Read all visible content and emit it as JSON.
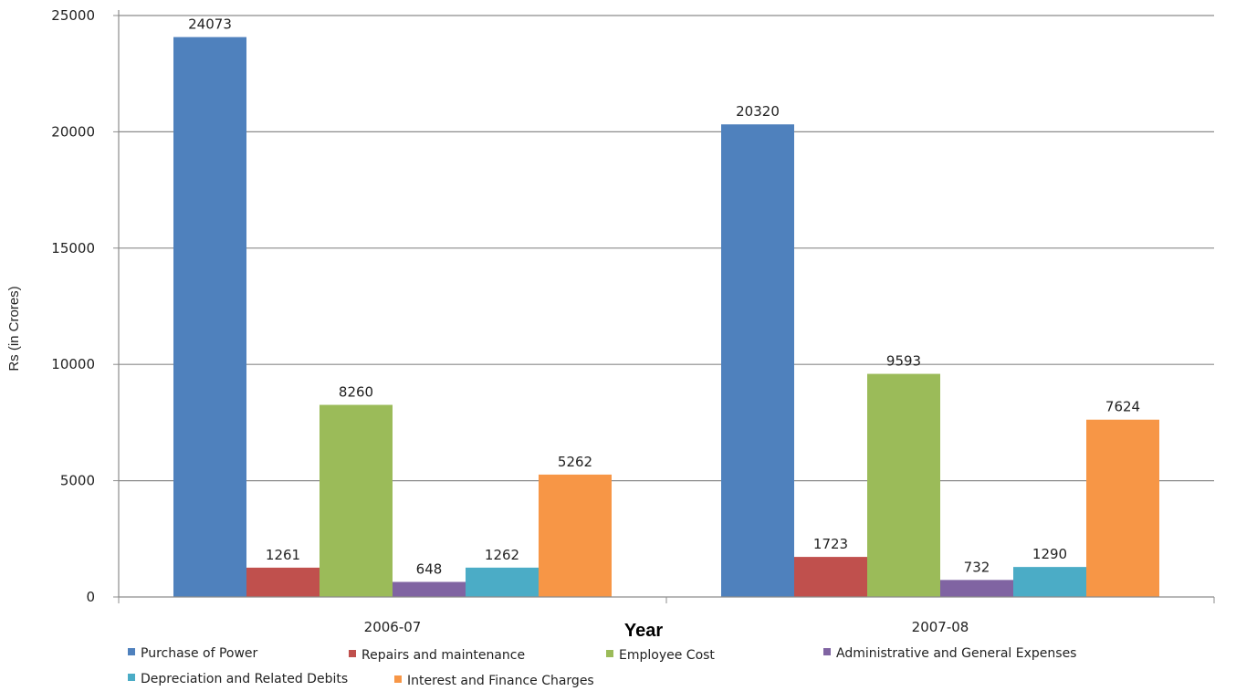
{
  "chart_data": {
    "type": "bar",
    "title": "",
    "xlabel": "Year",
    "ylabel": "Rs (in Crores)",
    "ylim": [
      0,
      25000
    ],
    "yticks": [
      0,
      5000,
      10000,
      15000,
      20000,
      25000
    ],
    "grid": true,
    "legend_position": "bottom",
    "categories": [
      "2006-07",
      "2007-08"
    ],
    "series": [
      {
        "name": "Purchase of Power",
        "values": [
          24073,
          20320
        ],
        "color": "#4f81bd"
      },
      {
        "name": "Repairs and maintenance",
        "values": [
          1261,
          1723
        ],
        "color": "#c0504d"
      },
      {
        "name": "Employee Cost",
        "values": [
          8260,
          9593
        ],
        "color": "#9bbb59"
      },
      {
        "name": "Administrative and General Expenses",
        "values": [
          648,
          732
        ],
        "color": "#8064a2"
      },
      {
        "name": "Depreciation and Related Debits",
        "values": [
          1262,
          1290
        ],
        "color": "#4bacc6"
      },
      {
        "name": "Interest and Finance Charges",
        "values": [
          5262,
          7624
        ],
        "color": "#f79646"
      }
    ]
  }
}
